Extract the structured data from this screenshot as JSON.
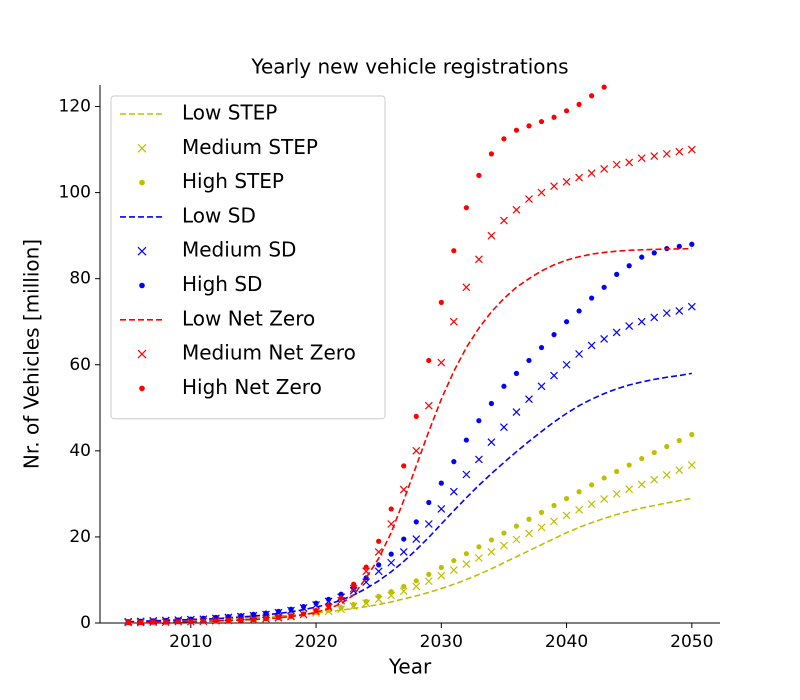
{
  "chart_data": {
    "type": "line",
    "title": "Yearly new vehicle registrations",
    "x_label": "Year",
    "y_label": "Nr. of Vehicles [million]",
    "x": [
      2005,
      2006,
      2007,
      2008,
      2009,
      2010,
      2011,
      2012,
      2013,
      2014,
      2015,
      2016,
      2017,
      2018,
      2019,
      2020,
      2021,
      2022,
      2023,
      2024,
      2025,
      2026,
      2027,
      2028,
      2029,
      2030,
      2031,
      2032,
      2033,
      2034,
      2035,
      2036,
      2037,
      2038,
      2039,
      2040,
      2041,
      2042,
      2043,
      2044,
      2045,
      2046,
      2047,
      2048,
      2049,
      2050
    ],
    "xlim": [
      2002.75,
      2052.25
    ],
    "xticks": [
      2010,
      2020,
      2030,
      2040,
      2050
    ],
    "ylim": [
      0,
      125
    ],
    "yticks": [
      0,
      20,
      40,
      60,
      80,
      100,
      120
    ],
    "legend": "upper left",
    "series": [
      {
        "name": "Low STEP",
        "color": "#bfbf00",
        "style": "dashed",
        "values": [
          0.2,
          0.3,
          0.4,
          0.5,
          0.6,
          0.7,
          0.8,
          0.9,
          1.0,
          1.1,
          1.2,
          1.4,
          1.6,
          1.8,
          2.0,
          2.3,
          2.6,
          3.0,
          3.4,
          3.8,
          4.3,
          4.9,
          5.6,
          6.3,
          7.1,
          8.0,
          9.0,
          10.1,
          11.3,
          12.6,
          14.0,
          15.4,
          16.8,
          18.2,
          19.6,
          21.0,
          22.2,
          23.3,
          24.3,
          25.2,
          26.0,
          26.7,
          27.3,
          27.9,
          28.4,
          29.0
        ]
      },
      {
        "name": "Medium STEP",
        "color": "#bfbf00",
        "style": "x",
        "values": [
          0.2,
          0.3,
          0.4,
          0.5,
          0.6,
          0.7,
          0.8,
          0.9,
          1.0,
          1.1,
          1.2,
          1.4,
          1.6,
          1.8,
          2.0,
          2.3,
          2.7,
          3.2,
          3.9,
          4.6,
          5.5,
          6.4,
          7.4,
          8.5,
          9.7,
          11.0,
          12.3,
          13.7,
          15.1,
          16.5,
          18.0,
          19.4,
          20.8,
          22.2,
          23.6,
          25.0,
          26.3,
          27.6,
          28.8,
          30.0,
          31.1,
          32.2,
          33.3,
          34.4,
          35.5,
          36.7
        ]
      },
      {
        "name": "High STEP",
        "color": "#bfbf00",
        "style": "dot",
        "values": [
          0.2,
          0.3,
          0.4,
          0.5,
          0.6,
          0.7,
          0.8,
          0.9,
          1.0,
          1.1,
          1.2,
          1.4,
          1.6,
          1.8,
          2.1,
          2.5,
          3.0,
          3.6,
          4.3,
          5.0,
          6.2,
          7.3,
          8.5,
          9.8,
          11.3,
          12.9,
          14.5,
          16.1,
          17.7,
          19.3,
          20.9,
          22.5,
          24.1,
          25.7,
          27.3,
          28.9,
          30.5,
          32.1,
          33.7,
          35.2,
          36.7,
          38.2,
          39.6,
          41.0,
          42.4,
          43.8
        ]
      },
      {
        "name": "Low SD",
        "color": "#0000ff",
        "style": "dashed",
        "values": [
          0.3,
          0.4,
          0.5,
          0.6,
          0.7,
          0.8,
          0.9,
          1.0,
          1.2,
          1.4,
          1.6,
          1.9,
          2.2,
          2.6,
          3.1,
          3.7,
          4.4,
          5.3,
          6.5,
          8.0,
          9.8,
          11.9,
          14.3,
          17.0,
          19.9,
          23.0,
          26.1,
          29.1,
          32.0,
          34.7,
          37.3,
          39.8,
          42.2,
          44.5,
          46.7,
          48.7,
          50.5,
          52.0,
          53.3,
          54.4,
          55.3,
          56.0,
          56.6,
          57.1,
          57.5,
          58.0
        ]
      },
      {
        "name": "Medium SD",
        "color": "#0000ff",
        "style": "x",
        "values": [
          0.3,
          0.4,
          0.5,
          0.6,
          0.7,
          0.8,
          0.9,
          1.1,
          1.3,
          1.5,
          1.7,
          2.0,
          2.4,
          2.9,
          3.5,
          4.2,
          5.0,
          6.0,
          7.5,
          9.5,
          12.0,
          14.0,
          16.5,
          19.5,
          23.0,
          26.5,
          30.5,
          34.5,
          38.0,
          42.0,
          45.5,
          49.0,
          52.0,
          55.0,
          57.5,
          60.0,
          62.5,
          64.5,
          66.0,
          67.5,
          69.0,
          70.0,
          71.0,
          72.0,
          72.5,
          73.5
        ]
      },
      {
        "name": "High SD",
        "color": "#0000ff",
        "style": "dot",
        "values": [
          0.3,
          0.4,
          0.5,
          0.6,
          0.7,
          0.9,
          1.1,
          1.3,
          1.5,
          1.7,
          2.0,
          2.3,
          2.7,
          3.2,
          3.8,
          4.6,
          5.5,
          6.7,
          8.2,
          10.5,
          13.5,
          16.0,
          19.5,
          23.5,
          28.0,
          32.5,
          37.5,
          42.5,
          47.0,
          51.0,
          55.0,
          58.0,
          61.0,
          64.0,
          67.0,
          70.0,
          72.5,
          75.5,
          78.0,
          81.0,
          83.0,
          85.0,
          86.0,
          87.0,
          87.5,
          88.0
        ]
      },
      {
        "name": "Low Net Zero",
        "color": "#ff0000",
        "style": "dashed",
        "values": [
          0.1,
          0.1,
          0.2,
          0.2,
          0.3,
          0.3,
          0.4,
          0.5,
          0.6,
          0.7,
          0.8,
          1.0,
          1.2,
          1.5,
          1.9,
          2.5,
          3.3,
          4.5,
          6.5,
          10.5,
          15.0,
          21.0,
          28.5,
          36.5,
          44.5,
          52.0,
          58.5,
          64.0,
          68.5,
          72.3,
          75.4,
          78.0,
          80.0,
          81.8,
          83.2,
          84.3,
          85.1,
          85.7,
          86.1,
          86.4,
          86.6,
          86.7,
          86.8,
          86.9,
          86.9,
          87.0
        ]
      },
      {
        "name": "Medium Net Zero",
        "color": "#ff0000",
        "style": "x",
        "values": [
          0.1,
          0.1,
          0.2,
          0.2,
          0.3,
          0.3,
          0.4,
          0.5,
          0.6,
          0.7,
          0.8,
          1.0,
          1.2,
          1.5,
          2.0,
          2.7,
          3.7,
          5.2,
          8.0,
          12.0,
          16.5,
          23.0,
          31.0,
          40.0,
          50.5,
          60.5,
          70.0,
          78.0,
          84.5,
          90.0,
          93.5,
          96.0,
          98.5,
          100.0,
          101.5,
          102.5,
          103.5,
          104.5,
          105.5,
          106.5,
          107.0,
          108.0,
          108.5,
          109.0,
          109.5,
          110.0
        ]
      },
      {
        "name": "High Net Zero",
        "color": "#ff0000",
        "style": "dot",
        "values": [
          0.1,
          0.1,
          0.2,
          0.2,
          0.3,
          0.3,
          0.4,
          0.5,
          0.6,
          0.7,
          0.8,
          1.0,
          1.3,
          1.6,
          2.1,
          2.9,
          4.0,
          5.8,
          9.0,
          13.0,
          19.0,
          26.5,
          36.5,
          48.0,
          61.0,
          74.5,
          86.5,
          96.5,
          104.0,
          109.0,
          112.5,
          114.5,
          115.5,
          116.5,
          117.5,
          119.0,
          120.5,
          122.5,
          124.5,
          null,
          null,
          null,
          null,
          null,
          null,
          null
        ]
      }
    ]
  }
}
